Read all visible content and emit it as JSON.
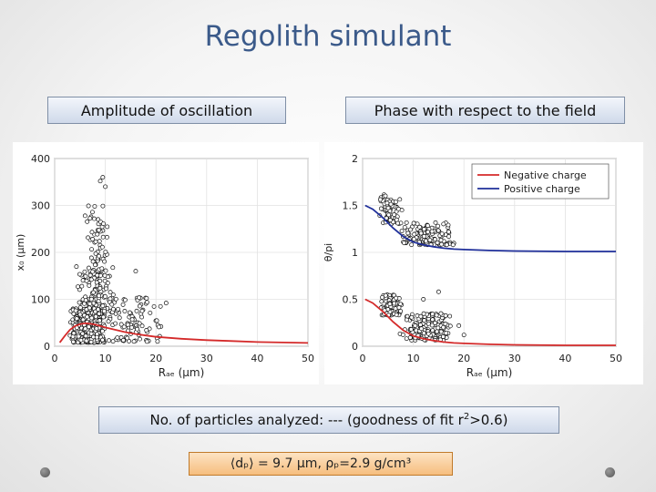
{
  "title": "Regolith simulant",
  "labels": {
    "left": "Amplitude of oscillation",
    "right": "Phase with respect to the field"
  },
  "footer": {
    "text_pre": "No. of particles analyzed: --- (goodness of fit r",
    "sup": "2",
    "text_post": ">0.6)"
  },
  "formula": "⟨dₚ⟩ = 9.7 µm, ρₚ=2.9 g/cm³",
  "chart_data": [
    {
      "type": "scatter",
      "title": "",
      "xlabel": "Rₐₑ (µm)",
      "ylabel": "x₀ (µm)",
      "xlim": [
        0,
        50
      ],
      "ylim": [
        0,
        400
      ],
      "xticks": [
        0,
        10,
        20,
        30,
        40,
        50
      ],
      "yticks": [
        0,
        100,
        200,
        300,
        400
      ],
      "grid": true,
      "series": [
        {
          "kind": "scatter",
          "color": "#000000",
          "clusters": [
            {
              "x": [
                3,
                10
              ],
              "y": [
                8,
                80
              ],
              "n": 450
            },
            {
              "x": [
                4,
                13
              ],
              "y": [
                60,
                170
              ],
              "n": 140
            },
            {
              "x": [
                6,
                11
              ],
              "y": [
                150,
                300
              ],
              "n": 60
            },
            {
              "x": [
                9,
                22
              ],
              "y": [
                10,
                110
              ],
              "n": 90
            }
          ],
          "points": [
            [
              9,
              352
            ],
            [
              9.5,
              360
            ],
            [
              10,
              340
            ],
            [
              6,
              278
            ],
            [
              16,
              160
            ],
            [
              22,
              92
            ]
          ]
        },
        {
          "kind": "line",
          "color": "#d42a2a",
          "x": [
            1,
            2,
            3,
            4,
            5,
            6,
            7,
            8,
            10,
            12,
            14,
            16,
            18,
            20,
            25,
            30,
            35,
            40,
            45,
            50
          ],
          "y": [
            8,
            22,
            35,
            43,
            47,
            49,
            48,
            46,
            40,
            35,
            30,
            26,
            23,
            20,
            16,
            13,
            11,
            9,
            8,
            7
          ]
        }
      ]
    },
    {
      "type": "scatter",
      "title": "",
      "xlabel": "Rₐₑ (µm)",
      "ylabel": "θ/pi",
      "xlim": [
        0,
        50
      ],
      "ylim": [
        0,
        2
      ],
      "xticks": [
        0,
        10,
        20,
        30,
        40,
        50
      ],
      "yticks": [
        0,
        0.5,
        1,
        1.5,
        2
      ],
      "grid": true,
      "legend": {
        "position": "top-right",
        "entries": [
          "Negative charge",
          "Positive charge"
        ]
      },
      "series": [
        {
          "kind": "scatter",
          "color": "#000000",
          "clusters": [
            {
              "x": [
                3,
                8
              ],
              "y": [
                1.3,
                1.62
              ],
              "n": 70
            },
            {
              "x": [
                7,
                19
              ],
              "y": [
                1.08,
                1.32
              ],
              "n": 140
            },
            {
              "x": [
                3,
                8
              ],
              "y": [
                0.33,
                0.55
              ],
              "n": 110
            },
            {
              "x": [
                7,
                18
              ],
              "y": [
                0.06,
                0.35
              ],
              "n": 170
            }
          ],
          "points": [
            [
              12,
              0.5
            ],
            [
              15,
              0.58
            ],
            [
              19,
              0.22
            ],
            [
              20,
              0.12
            ]
          ]
        },
        {
          "kind": "line",
          "name": "Negative charge",
          "color": "#d42a2a",
          "x": [
            0.5,
            2,
            4,
            6,
            8,
            10,
            12,
            14,
            16,
            18,
            20,
            25,
            30,
            40,
            50
          ],
          "y": [
            0.5,
            0.46,
            0.37,
            0.26,
            0.17,
            0.11,
            0.08,
            0.06,
            0.045,
            0.035,
            0.03,
            0.02,
            0.015,
            0.01,
            0.01
          ]
        },
        {
          "kind": "line",
          "name": "Positive charge",
          "color": "#1f2f9a",
          "x": [
            0.5,
            2,
            4,
            6,
            8,
            10,
            12,
            14,
            16,
            18,
            20,
            25,
            30,
            40,
            50
          ],
          "y": [
            1.5,
            1.46,
            1.37,
            1.26,
            1.17,
            1.11,
            1.08,
            1.06,
            1.045,
            1.035,
            1.03,
            1.02,
            1.015,
            1.01,
            1.01
          ]
        }
      ]
    }
  ]
}
